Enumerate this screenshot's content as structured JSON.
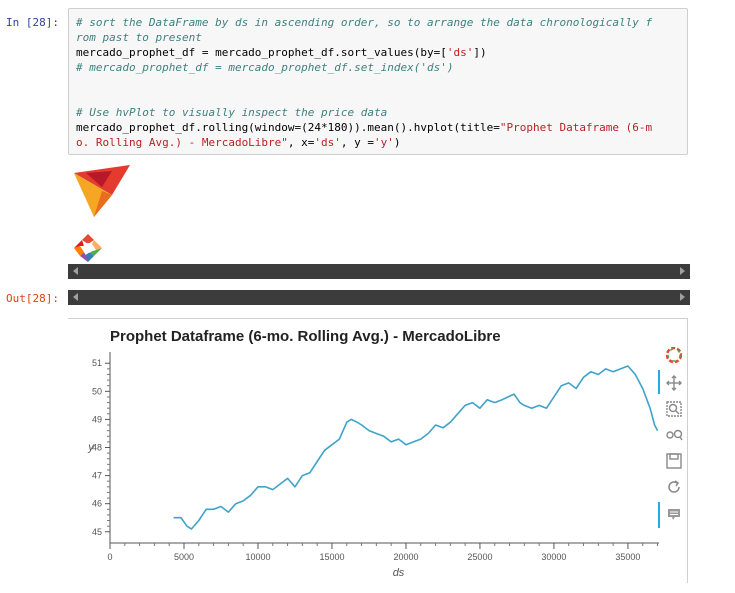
{
  "cell": {
    "in_prompt": "In [28]:",
    "out_prompt": "Out[28]:",
    "code_lines": [
      {
        "parts": [
          {
            "t": "cm",
            "v": "# sort the DataFrame by ds in ascending order, so to arrange the data chronologically f"
          }
        ]
      },
      {
        "parts": [
          {
            "t": "cm",
            "v": "rom past to present"
          }
        ]
      },
      {
        "parts": [
          {
            "t": "tx",
            "v": "mercado_prophet_df = mercado_prophet_df.sort_values(by=["
          },
          {
            "t": "st",
            "v": "'ds'"
          },
          {
            "t": "tx",
            "v": "])"
          }
        ]
      },
      {
        "parts": [
          {
            "t": "cm",
            "v": "# mercado_prophet_df = mercado_prophet_df.set_index('ds')"
          }
        ]
      },
      {
        "parts": [
          {
            "t": "tx",
            "v": ""
          }
        ]
      },
      {
        "parts": [
          {
            "t": "tx",
            "v": ""
          }
        ]
      },
      {
        "parts": [
          {
            "t": "cm",
            "v": "# Use hvPlot to visually inspect the price data"
          }
        ]
      },
      {
        "parts": [
          {
            "t": "tx",
            "v": "mercado_prophet_df.rolling(window=(24*180)).mean().hvplot(title="
          },
          {
            "t": "st",
            "v": "\"Prophet Dataframe (6-m"
          }
        ]
      },
      {
        "parts": [
          {
            "t": "st",
            "v": "o. Rolling Avg.) - MercadoLibre\""
          },
          {
            "t": "tx",
            "v": ", x="
          },
          {
            "t": "st",
            "v": "'ds'"
          },
          {
            "t": "tx",
            "v": ", y ="
          },
          {
            "t": "st",
            "v": "'y'"
          },
          {
            "t": "tx",
            "v": ")"
          }
        ]
      }
    ]
  },
  "toolbar": {
    "icons": [
      "bokeh-logo-icon",
      "pan-icon",
      "box-zoom-icon",
      "wheel-zoom-icon",
      "save-icon",
      "reset-icon",
      "hover-icon"
    ]
  },
  "colors": {
    "line": "#3fa3c9",
    "prompt_in": "#303f9f",
    "prompt_out": "#d84315"
  },
  "chart_data": {
    "type": "line",
    "title": "Prophet Dataframe (6-mo. Rolling Avg.) - MercadoLibre",
    "xlabel": "ds",
    "ylabel": "y",
    "xlim": [
      0,
      37100
    ],
    "ylim": [
      44.6,
      51.4
    ],
    "xticks": [
      0,
      5000,
      10000,
      15000,
      20000,
      25000,
      30000,
      35000
    ],
    "yticks": [
      45,
      46,
      47,
      48,
      49,
      50,
      51
    ],
    "grid": false,
    "series": [
      {
        "x": [
          4300,
          4800,
          5200,
          5500,
          6000,
          6500,
          7000,
          7500,
          8000,
          8500,
          9000,
          9500,
          10000,
          10500,
          11000,
          11500,
          12000,
          12500,
          13000,
          13500,
          14000,
          14500,
          15000,
          15500,
          16000,
          16300,
          16700,
          17000,
          17500,
          18000,
          18500,
          19000,
          19500,
          20000,
          20500,
          21000,
          21500,
          22000,
          22500,
          23000,
          23500,
          24000,
          24500,
          25000,
          25500,
          26000,
          26500,
          26900,
          27300,
          27700,
          28000,
          28500,
          29000,
          29500,
          30000,
          30500,
          31000,
          31500,
          32000,
          32500,
          33000,
          33500,
          34000,
          34500,
          35000,
          35500,
          36000,
          36500,
          36800,
          37000
        ],
        "y": [
          45.5,
          45.5,
          45.2,
          45.1,
          45.4,
          45.8,
          45.8,
          45.9,
          45.7,
          46.0,
          46.1,
          46.3,
          46.6,
          46.6,
          46.5,
          46.7,
          46.9,
          46.6,
          47.0,
          47.1,
          47.5,
          47.9,
          48.1,
          48.3,
          48.9,
          49.0,
          48.9,
          48.8,
          48.6,
          48.5,
          48.4,
          48.2,
          48.3,
          48.1,
          48.2,
          48.3,
          48.5,
          48.8,
          48.7,
          48.9,
          49.2,
          49.5,
          49.6,
          49.4,
          49.7,
          49.6,
          49.7,
          49.8,
          49.9,
          49.6,
          49.5,
          49.4,
          49.5,
          49.4,
          49.8,
          50.2,
          50.3,
          50.1,
          50.5,
          50.7,
          50.6,
          50.8,
          50.7,
          50.8,
          50.9,
          50.6,
          50.1,
          49.4,
          48.8,
          48.6
        ]
      }
    ]
  }
}
